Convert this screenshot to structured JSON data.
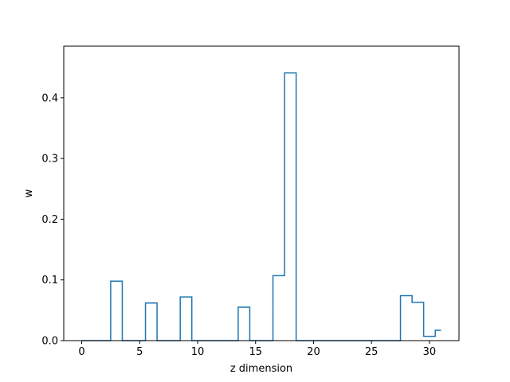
{
  "chart_data": {
    "type": "line",
    "drawstyle": "steps-mid",
    "xlabel": "z dimension",
    "ylabel": "w",
    "xlim": [
      -1.55,
      32.55
    ],
    "ylim": [
      0.0,
      0.485
    ],
    "xticks": [
      0,
      5,
      10,
      15,
      20,
      25,
      30
    ],
    "yticks": [
      0.0,
      0.1,
      0.2,
      0.3,
      0.4
    ],
    "ytick_labels": [
      "0.0",
      "0.1",
      "0.2",
      "0.3",
      "0.4"
    ],
    "grid": false,
    "color": "#1f77b4",
    "x": [
      0,
      1,
      2,
      3,
      4,
      5,
      6,
      7,
      8,
      9,
      10,
      11,
      12,
      13,
      14,
      15,
      16,
      17,
      18,
      19,
      20,
      21,
      22,
      23,
      24,
      25,
      26,
      27,
      28,
      29,
      30,
      31
    ],
    "y": [
      0,
      0,
      0,
      0.098,
      0,
      0,
      0.062,
      0,
      0,
      0.072,
      0,
      0,
      0,
      0,
      0.055,
      0,
      0,
      0.107,
      0.441,
      0,
      0,
      0,
      0,
      0,
      0,
      0,
      0,
      0,
      0.074,
      0.063,
      0.007,
      0.017
    ]
  }
}
